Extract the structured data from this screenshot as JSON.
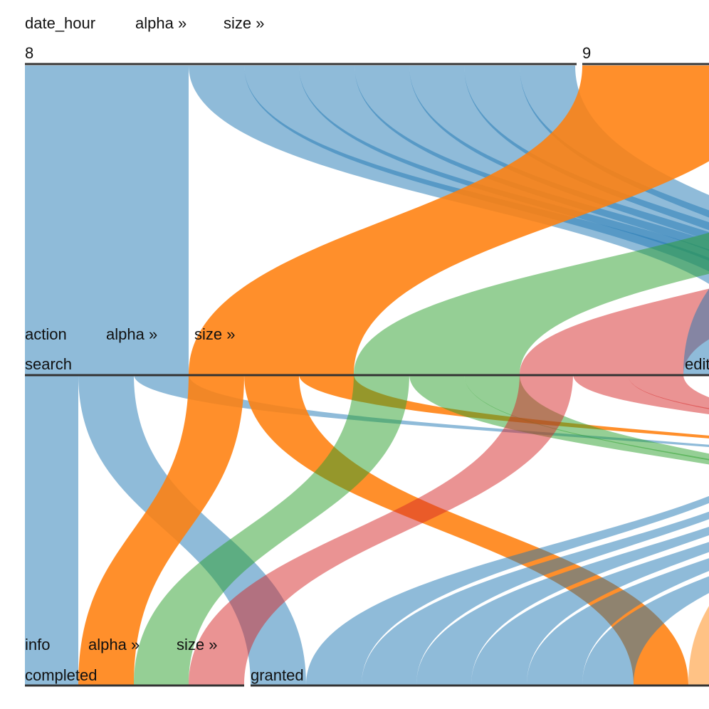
{
  "dimensions": [
    {
      "name": "date_hour",
      "sort_alpha": "alpha »",
      "sort_size": "size »",
      "categories": [
        "8",
        "9"
      ]
    },
    {
      "name": "action",
      "sort_alpha": "alpha »",
      "sort_size": "size »",
      "categories": [
        "search",
        "edit"
      ]
    },
    {
      "name": "info",
      "sort_alpha": "alpha »",
      "sort_size": "size »",
      "categories": [
        "completed",
        "granted"
      ]
    }
  ]
}
